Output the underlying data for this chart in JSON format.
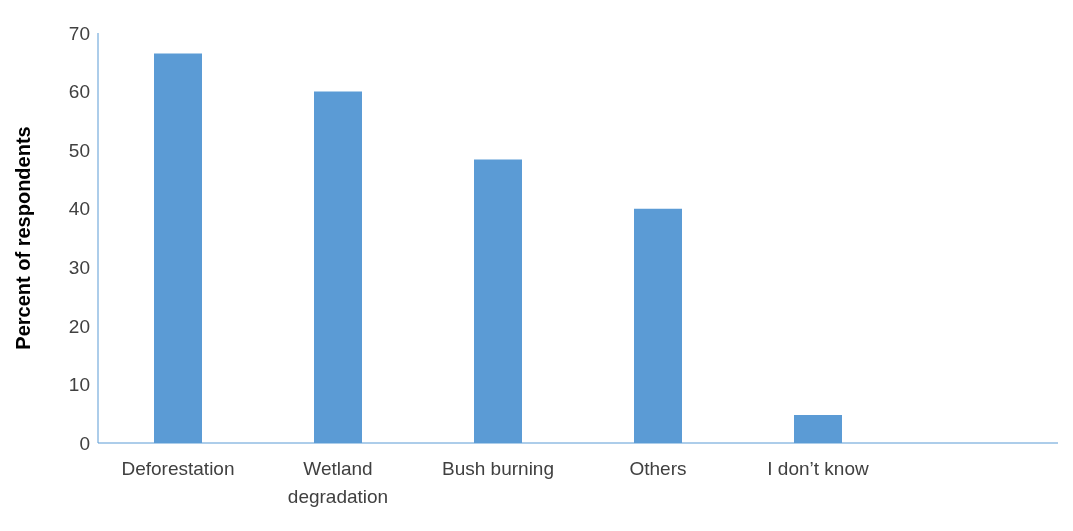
{
  "chart_data": {
    "type": "bar",
    "ylabel": "Percent  of respondents",
    "categories": [
      "Deforestation",
      "Wetland degradation",
      "Bush burning",
      "Others",
      "I don’t know",
      null
    ],
    "values": [
      66.5,
      60.0,
      48.4,
      40.0,
      4.8,
      null
    ],
    "color": "#5b9bd5",
    "ylim": [
      0,
      70
    ],
    "yticks": [
      0,
      10,
      20,
      30,
      40,
      50,
      60,
      70
    ],
    "grid": false
  }
}
